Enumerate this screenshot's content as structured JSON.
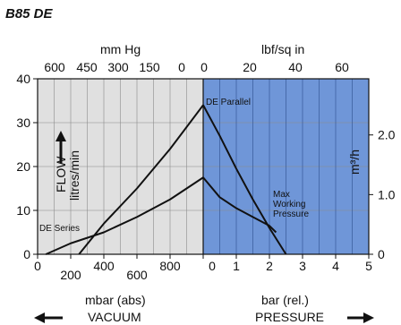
{
  "chart_data": {
    "type": "line",
    "title": "B85 DE",
    "colors": {
      "vacuum_bg": "#e0e0e0",
      "pressure_bg": "#6f96d8",
      "line": "#111111"
    },
    "left_axis": {
      "ticks": [
        "40",
        "30",
        "20",
        "10",
        "0"
      ],
      "values": [
        40,
        30,
        20,
        10,
        0
      ],
      "ylim": [
        0,
        40
      ]
    },
    "right_axis": {
      "label": "m³/h",
      "ticks": [
        "2.0",
        "1.0",
        "0"
      ],
      "values": [
        2.0,
        1.0,
        0
      ]
    },
    "flow_label": {
      "line1": "FLOW",
      "line2": "litres/min"
    },
    "top_left_axis": {
      "label": "mm Hg",
      "ticks": [
        "600",
        "450",
        "300",
        "150",
        "0"
      ]
    },
    "top_right_axis": {
      "label": "lbf/sq in",
      "ticks": [
        "0",
        "20",
        "40",
        "60"
      ]
    },
    "bottom_left_axis": {
      "label": "mbar (abs)",
      "ticks_upper": [
        "0",
        "400",
        "800"
      ],
      "ticks_lower": [
        "200",
        "600"
      ]
    },
    "bottom_right_axis": {
      "label": "bar (rel.)",
      "ticks": [
        "0",
        "1",
        "2",
        "3",
        "4",
        "5"
      ]
    },
    "direction_labels": {
      "vacuum": "VACUUM",
      "pressure": "PRESSURE"
    },
    "series_labels": {
      "parallel": "DE Parallel",
      "series": "DE Series",
      "max_line1": "Max",
      "max_line2": "Working",
      "max_line3": "Pressure"
    },
    "vacuum_series": [
      {
        "name": "DE Parallel",
        "x_mbar_abs": [
          250,
          400,
          600,
          800,
          1000
        ],
        "y": [
          0,
          7,
          15,
          24,
          34
        ]
      },
      {
        "name": "DE Series",
        "x_mbar_abs": [
          50,
          200,
          400,
          600,
          800,
          1000
        ],
        "y": [
          0,
          2.5,
          5,
          8.5,
          12.5,
          17.5
        ]
      }
    ],
    "pressure_series": [
      {
        "name": "DE Parallel",
        "x_bar": [
          0,
          0.5,
          1,
          1.5,
          2,
          2.5
        ],
        "y": [
          34,
          27,
          19.5,
          12.5,
          6,
          0
        ]
      },
      {
        "name": "DE Series",
        "x_bar": [
          0,
          0.5,
          1,
          1.5,
          2,
          2.2
        ],
        "y": [
          17.5,
          13,
          10.5,
          8.5,
          6.5,
          5
        ]
      }
    ]
  }
}
